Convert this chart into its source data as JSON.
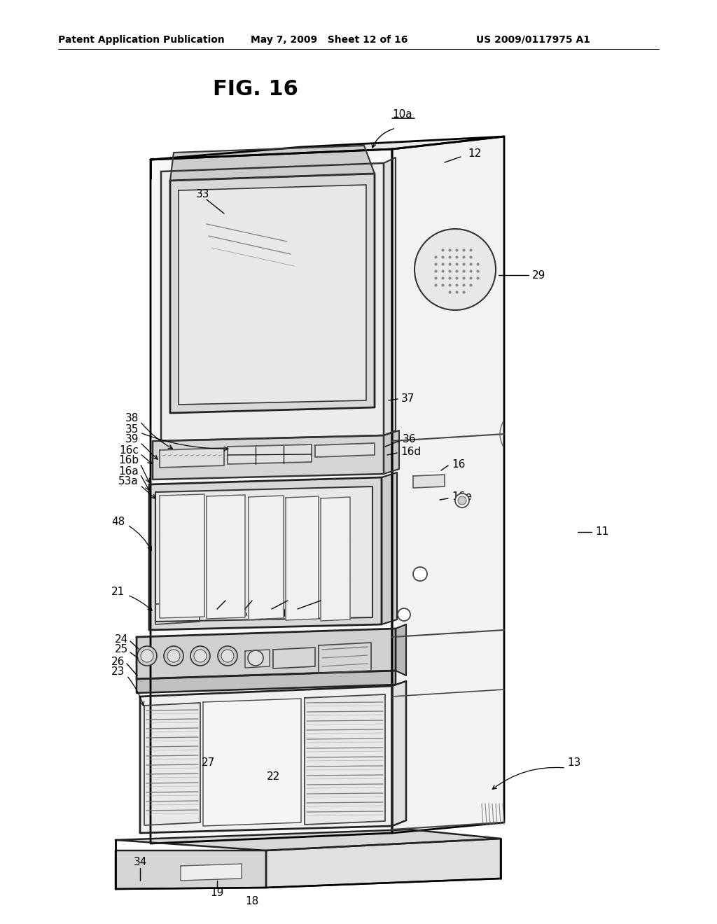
{
  "header_left": "Patent Application Publication",
  "header_mid": "May 7, 2009   Sheet 12 of 16",
  "header_right": "US 2009/0117975 A1",
  "fig_title": "FIG. 16",
  "background_color": "#ffffff"
}
